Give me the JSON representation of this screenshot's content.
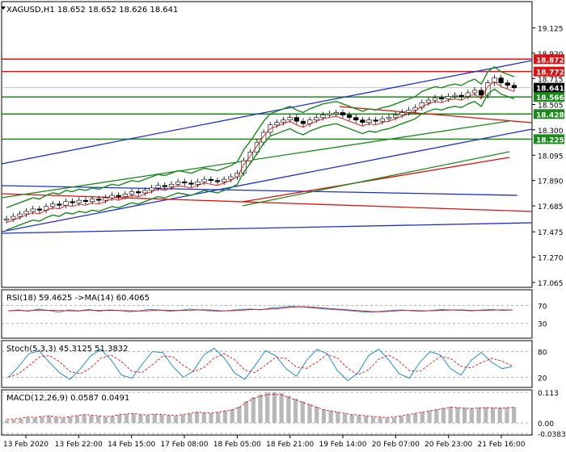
{
  "chart_data": [
    {
      "type": "candlestick",
      "pane": "main",
      "title": "XAGUSD,H1  18.652 18.652 18.626 18.641",
      "ylim": [
        17.065,
        19.22
      ],
      "yticks": [
        "19.125",
        "18.920",
        "18.715",
        "18.505",
        "18.300",
        "18.095",
        "17.890",
        "17.685",
        "17.475",
        "17.270",
        "17.065"
      ],
      "xticks": [
        "13 Feb 2020",
        "13 Feb 22:00",
        "14 Feb 15:00",
        "17 Feb 08:00",
        "18 Feb 05:00",
        "18 Feb 21:00",
        "19 Feb 14:00",
        "20 Feb 07:00",
        "20 Feb 23:00",
        "21 Feb 16:00"
      ],
      "price_markers": [
        {
          "label": "18.872",
          "value": 18.872,
          "color": "#e01010"
        },
        {
          "label": "18.772",
          "value": 18.772,
          "color": "#e01010"
        },
        {
          "label": "18.641",
          "value": 18.641,
          "color": "#000000"
        },
        {
          "label": "18.566",
          "value": 18.566,
          "color": "#1a8a1a"
        },
        {
          "label": "18.428",
          "value": 18.428,
          "color": "#1a8a1a"
        },
        {
          "label": "18.225",
          "value": 18.225,
          "color": "#1a8a1a"
        }
      ],
      "close_series": [
        17.58,
        17.6,
        17.62,
        17.64,
        17.66,
        17.65,
        17.68,
        17.7,
        17.69,
        17.72,
        17.71,
        17.73,
        17.72,
        17.74,
        17.73,
        17.75,
        17.77,
        17.76,
        17.78,
        17.8,
        17.79,
        17.81,
        17.83,
        17.85,
        17.84,
        17.86,
        17.88,
        17.87,
        17.86,
        17.88,
        17.9,
        17.89,
        17.88,
        17.9,
        17.92,
        17.95,
        18.05,
        18.12,
        18.2,
        18.28,
        18.34,
        18.36,
        18.38,
        18.4,
        18.37,
        18.35,
        18.38,
        18.4,
        18.42,
        18.43,
        18.44,
        18.42,
        18.4,
        18.38,
        18.36,
        18.38,
        18.37,
        18.39,
        18.4,
        18.42,
        18.44,
        18.46,
        18.48,
        18.52,
        18.54,
        18.56,
        18.55,
        18.57,
        18.58,
        18.57,
        18.6,
        18.62,
        18.58,
        18.68,
        18.72,
        18.68,
        18.66,
        18.64
      ]
    },
    {
      "type": "line",
      "pane": "rsi",
      "title": "RSI(18) 59.4625  ->MA(14) 60.4065",
      "yticks": [
        "70",
        "30"
      ],
      "ylim": [
        0,
        100
      ],
      "values": [
        58,
        60,
        57,
        62,
        59,
        55,
        60,
        58,
        61,
        57,
        60,
        59,
        56,
        58,
        61,
        60,
        57,
        59,
        62,
        60,
        58,
        57,
        59,
        61,
        62,
        60,
        64,
        66,
        68,
        67,
        65,
        63,
        61,
        60,
        58,
        56,
        55,
        57,
        59,
        60,
        58,
        57,
        59,
        61,
        60,
        59,
        58,
        60,
        61,
        59,
        60
      ]
    },
    {
      "type": "line",
      "pane": "stoch",
      "title": "Stoch(5,3,3) 45.3125 51.3832",
      "yticks": [
        "80",
        "20"
      ],
      "ylim": [
        0,
        100
      ],
      "values": [
        20,
        45,
        75,
        82,
        55,
        30,
        15,
        40,
        70,
        85,
        60,
        25,
        18,
        50,
        80,
        78,
        45,
        20,
        35,
        72,
        88,
        65,
        30,
        15,
        48,
        82,
        70,
        40,
        22,
        60,
        85,
        75,
        35,
        12,
        30,
        70,
        86,
        60,
        28,
        18,
        55,
        80,
        72,
        40,
        25,
        60,
        78,
        55,
        40,
        45
      ]
    },
    {
      "type": "bar",
      "pane": "macd",
      "title": "MACD(12,26,9) 0.0587 0.0491",
      "yticks": [
        "0.113",
        "0.00",
        "-0.0383"
      ],
      "ylim": [
        -0.0383,
        0.113
      ],
      "values": [
        0.01,
        0.012,
        0.015,
        0.02,
        0.018,
        0.022,
        0.025,
        0.02,
        0.018,
        0.022,
        0.026,
        0.03,
        0.028,
        0.025,
        0.022,
        0.024,
        0.03,
        0.032,
        0.035,
        0.03,
        0.028,
        0.032,
        0.03,
        0.028,
        0.026,
        0.03,
        0.035,
        0.04,
        0.038,
        0.036,
        0.04,
        0.045,
        0.05,
        0.06,
        0.08,
        0.095,
        0.105,
        0.112,
        0.113,
        0.11,
        0.1,
        0.09,
        0.08,
        0.07,
        0.06,
        0.05,
        0.045,
        0.04,
        0.035,
        0.03,
        0.028,
        0.025,
        0.022,
        0.02,
        0.018,
        0.02,
        0.025,
        0.03,
        0.035,
        0.04,
        0.045,
        0.05,
        0.055,
        0.06,
        0.058,
        0.056,
        0.055,
        0.057,
        0.058,
        0.057,
        0.056,
        0.058,
        0.059
      ]
    }
  ]
}
